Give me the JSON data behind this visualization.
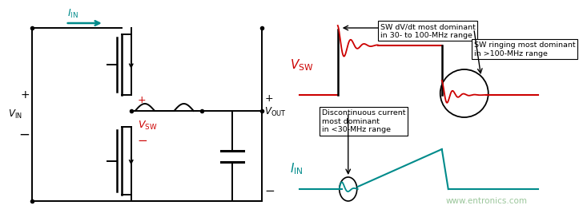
{
  "bg_color": "#ffffff",
  "circuit_color": "#000000",
  "red_color": "#cc0000",
  "teal_color": "#008b8b",
  "green_watermark": "#90c090",
  "annotation1": "SW dV/dt most dominant\nin 30- to 100-MHz range",
  "annotation2": "SW ringing most dominant\nin >100-MHz range",
  "annotation3": "Discontinuous current\nmost dominant\nin <30-MHz range",
  "watermark": "www.entronics.com"
}
